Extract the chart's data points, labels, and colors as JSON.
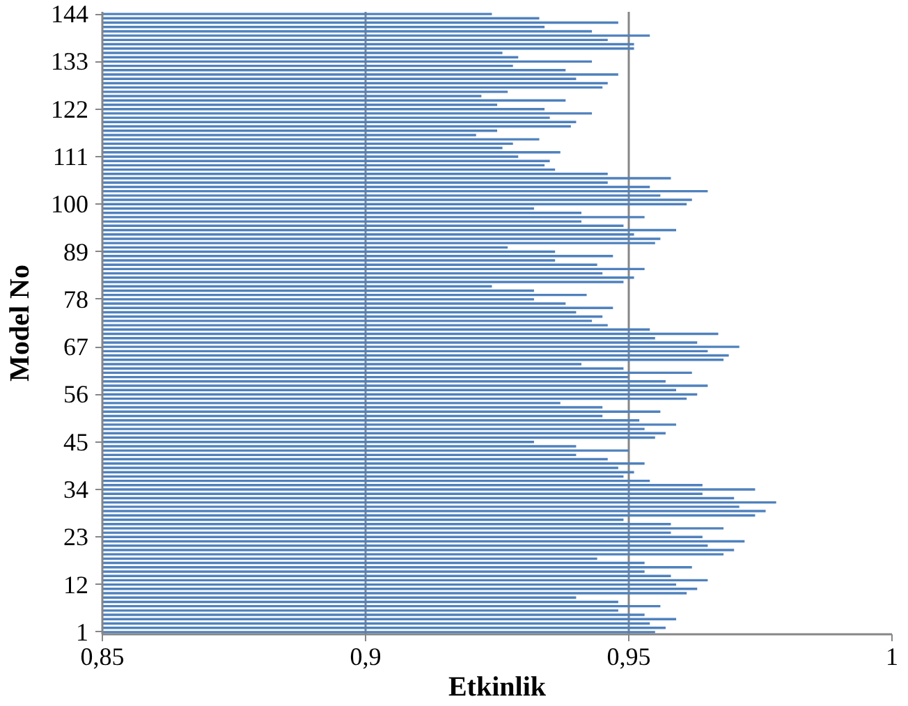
{
  "chart_data": {
    "type": "bar",
    "orientation": "horizontal",
    "xlabel": "Etkinlik",
    "ylabel": "Model No",
    "categories": [
      "144",
      null,
      null,
      null,
      null,
      null,
      null,
      null,
      null,
      null,
      null,
      "133",
      null,
      null,
      null,
      null,
      null,
      null,
      null,
      null,
      null,
      null,
      "122",
      null,
      null,
      null,
      null,
      null,
      null,
      null,
      null,
      null,
      null,
      "111",
      null,
      null,
      null,
      null,
      null,
      null,
      null,
      null,
      null,
      null,
      "100",
      null,
      null,
      null,
      null,
      null,
      null,
      null,
      null,
      null,
      null,
      "89",
      null,
      null,
      null,
      null,
      null,
      null,
      null,
      null,
      null,
      null,
      "78",
      null,
      null,
      null,
      null,
      null,
      null,
      null,
      null,
      null,
      null,
      "67",
      null,
      null,
      null,
      null,
      null,
      null,
      null,
      null,
      null,
      null,
      "56",
      null,
      null,
      null,
      null,
      null,
      null,
      null,
      null,
      null,
      null,
      "45",
      null,
      null,
      null,
      null,
      null,
      null,
      null,
      null,
      null,
      null,
      "34",
      null,
      null,
      null,
      null,
      null,
      null,
      null,
      null,
      null,
      null,
      "23",
      null,
      null,
      null,
      null,
      null,
      null,
      null,
      null,
      null,
      null,
      "12",
      null,
      null,
      null,
      null,
      null,
      null,
      null,
      null,
      null,
      null,
      "1"
    ],
    "values": [
      0.924,
      0.933,
      0.948,
      0.934,
      0.943,
      0.954,
      0.946,
      0.951,
      0.951,
      0.926,
      0.929,
      0.943,
      0.928,
      0.938,
      0.948,
      0.94,
      0.946,
      0.945,
      0.927,
      0.922,
      0.938,
      0.925,
      0.934,
      0.943,
      0.935,
      0.94,
      0.939,
      0.925,
      0.921,
      0.933,
      0.928,
      0.926,
      0.937,
      0.929,
      0.935,
      0.934,
      0.936,
      0.946,
      0.958,
      0.946,
      0.954,
      0.965,
      0.956,
      0.962,
      0.961,
      0.932,
      0.941,
      0.953,
      0.941,
      0.949,
      0.959,
      0.951,
      0.956,
      0.955,
      0.927,
      0.936,
      0.947,
      0.936,
      0.944,
      0.953,
      0.945,
      0.951,
      0.949,
      0.924,
      0.932,
      0.942,
      0.932,
      0.938,
      0.947,
      0.94,
      0.945,
      0.943,
      0.946,
      0.954,
      0.967,
      0.955,
      0.963,
      0.971,
      0.965,
      0.969,
      0.968,
      0.941,
      0.949,
      0.962,
      0.95,
      0.957,
      0.965,
      0.959,
      0.963,
      0.961,
      0.937,
      0.945,
      0.956,
      0.945,
      0.952,
      0.959,
      0.953,
      0.957,
      0.955,
      0.932,
      0.94,
      0.95,
      0.94,
      0.946,
      0.953,
      0.948,
      0.951,
      0.949,
      0.954,
      0.964,
      0.974,
      0.964,
      0.97,
      0.978,
      0.971,
      0.976,
      0.974,
      0.949,
      0.958,
      0.968,
      0.958,
      0.964,
      0.972,
      0.965,
      0.97,
      0.968,
      0.944,
      0.953,
      0.962,
      0.953,
      0.958,
      0.965,
      0.959,
      0.963,
      0.961,
      0.94,
      0.948,
      0.956,
      0.948,
      0.953,
      0.959,
      0.954,
      0.957,
      0.955
    ],
    "color": "#4f81bd",
    "xlim": [
      0.85,
      1
    ],
    "xticks": [
      {
        "value": 0.85,
        "label": "0,85"
      },
      {
        "value": 0.9,
        "label": "0,9"
      },
      {
        "value": 0.95,
        "label": "0,95"
      },
      1
    ],
    "grid": "x"
  }
}
